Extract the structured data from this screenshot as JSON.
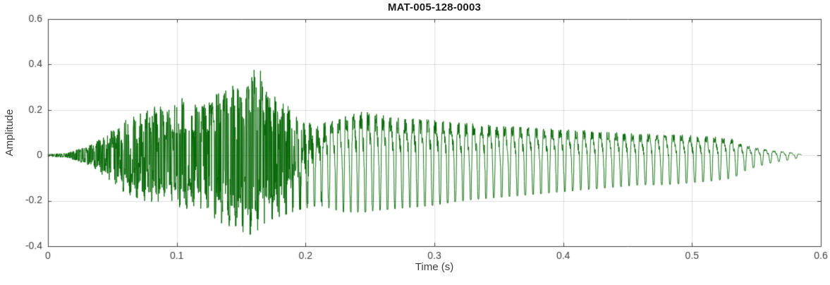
{
  "chart_data": {
    "type": "line",
    "title": "MAT-005-128-0003",
    "xlabel": "Time (s)",
    "ylabel": "Amplitude",
    "xlim": [
      0,
      0.6
    ],
    "ylim": [
      -0.4,
      0.6
    ],
    "x_ticks": [
      0,
      0.1,
      0.2,
      0.3,
      0.4,
      0.5,
      0.6
    ],
    "x_tick_labels": [
      "0",
      "0.1",
      "0.2",
      "0.3",
      "0.4",
      "0.5",
      "0.6"
    ],
    "y_ticks": [
      -0.4,
      -0.2,
      0,
      0.2,
      0.4,
      0.6
    ],
    "y_tick_labels": [
      "-0.4",
      "-0.2",
      "0",
      "0.2",
      "0.4",
      "0.6"
    ],
    "grid": true,
    "legend": "none",
    "line_color": "#006400",
    "axis_color": "#3f3f3f",
    "grid_color": "rgba(38,38,38,0.15)",
    "background_color": "#ffffff",
    "series_name": "audio-waveform-amplitude",
    "signal": {
      "duration_s": 0.585,
      "sample_rate_hz": 5000,
      "seed": 1234,
      "envelope_t": [
        0,
        0.015,
        0.025,
        0.035,
        0.045,
        0.055,
        0.065,
        0.075,
        0.085,
        0.095,
        0.105,
        0.115,
        0.125,
        0.135,
        0.145,
        0.152,
        0.158,
        0.163,
        0.168,
        0.175,
        0.185,
        0.195,
        0.21,
        0.23,
        0.245,
        0.26,
        0.28,
        0.3,
        0.32,
        0.34,
        0.36,
        0.38,
        0.4,
        0.42,
        0.44,
        0.46,
        0.48,
        0.5,
        0.52,
        0.532,
        0.54,
        0.55,
        0.56,
        0.57,
        0.58,
        0.585
      ],
      "envelope_upper": [
        0.005,
        0.01,
        0.03,
        0.05,
        0.09,
        0.14,
        0.17,
        0.19,
        0.22,
        0.2,
        0.26,
        0.22,
        0.24,
        0.3,
        0.32,
        0.3,
        0.36,
        0.42,
        0.3,
        0.28,
        0.24,
        0.2,
        0.18,
        0.26,
        0.28,
        0.26,
        0.24,
        0.23,
        0.21,
        0.2,
        0.19,
        0.18,
        0.17,
        0.16,
        0.15,
        0.14,
        0.14,
        0.13,
        0.12,
        0.11,
        0.07,
        0.05,
        0.035,
        0.025,
        0.015,
        0.005
      ],
      "envelope_lower": [
        -0.005,
        -0.01,
        -0.03,
        -0.05,
        -0.1,
        -0.15,
        -0.18,
        -0.2,
        -0.22,
        -0.2,
        -0.24,
        -0.22,
        -0.26,
        -0.3,
        -0.32,
        -0.34,
        -0.35,
        -0.33,
        -0.3,
        -0.28,
        -0.26,
        -0.24,
        -0.22,
        -0.25,
        -0.25,
        -0.24,
        -0.23,
        -0.22,
        -0.2,
        -0.19,
        -0.18,
        -0.17,
        -0.16,
        -0.15,
        -0.14,
        -0.13,
        -0.13,
        -0.12,
        -0.11,
        -0.1,
        -0.07,
        -0.05,
        -0.035,
        -0.025,
        -0.015,
        -0.005
      ],
      "noise_t": [
        0,
        0.02,
        0.04,
        0.05,
        0.18,
        0.2,
        0.22,
        0.585
      ],
      "noise_w": [
        0.9,
        0.9,
        0.8,
        0.75,
        0.75,
        0.35,
        0.12,
        0.08
      ],
      "f0_t": [
        0,
        0.2,
        0.35,
        0.585
      ],
      "f0_hz": [
        185,
        180,
        165,
        150
      ]
    }
  }
}
